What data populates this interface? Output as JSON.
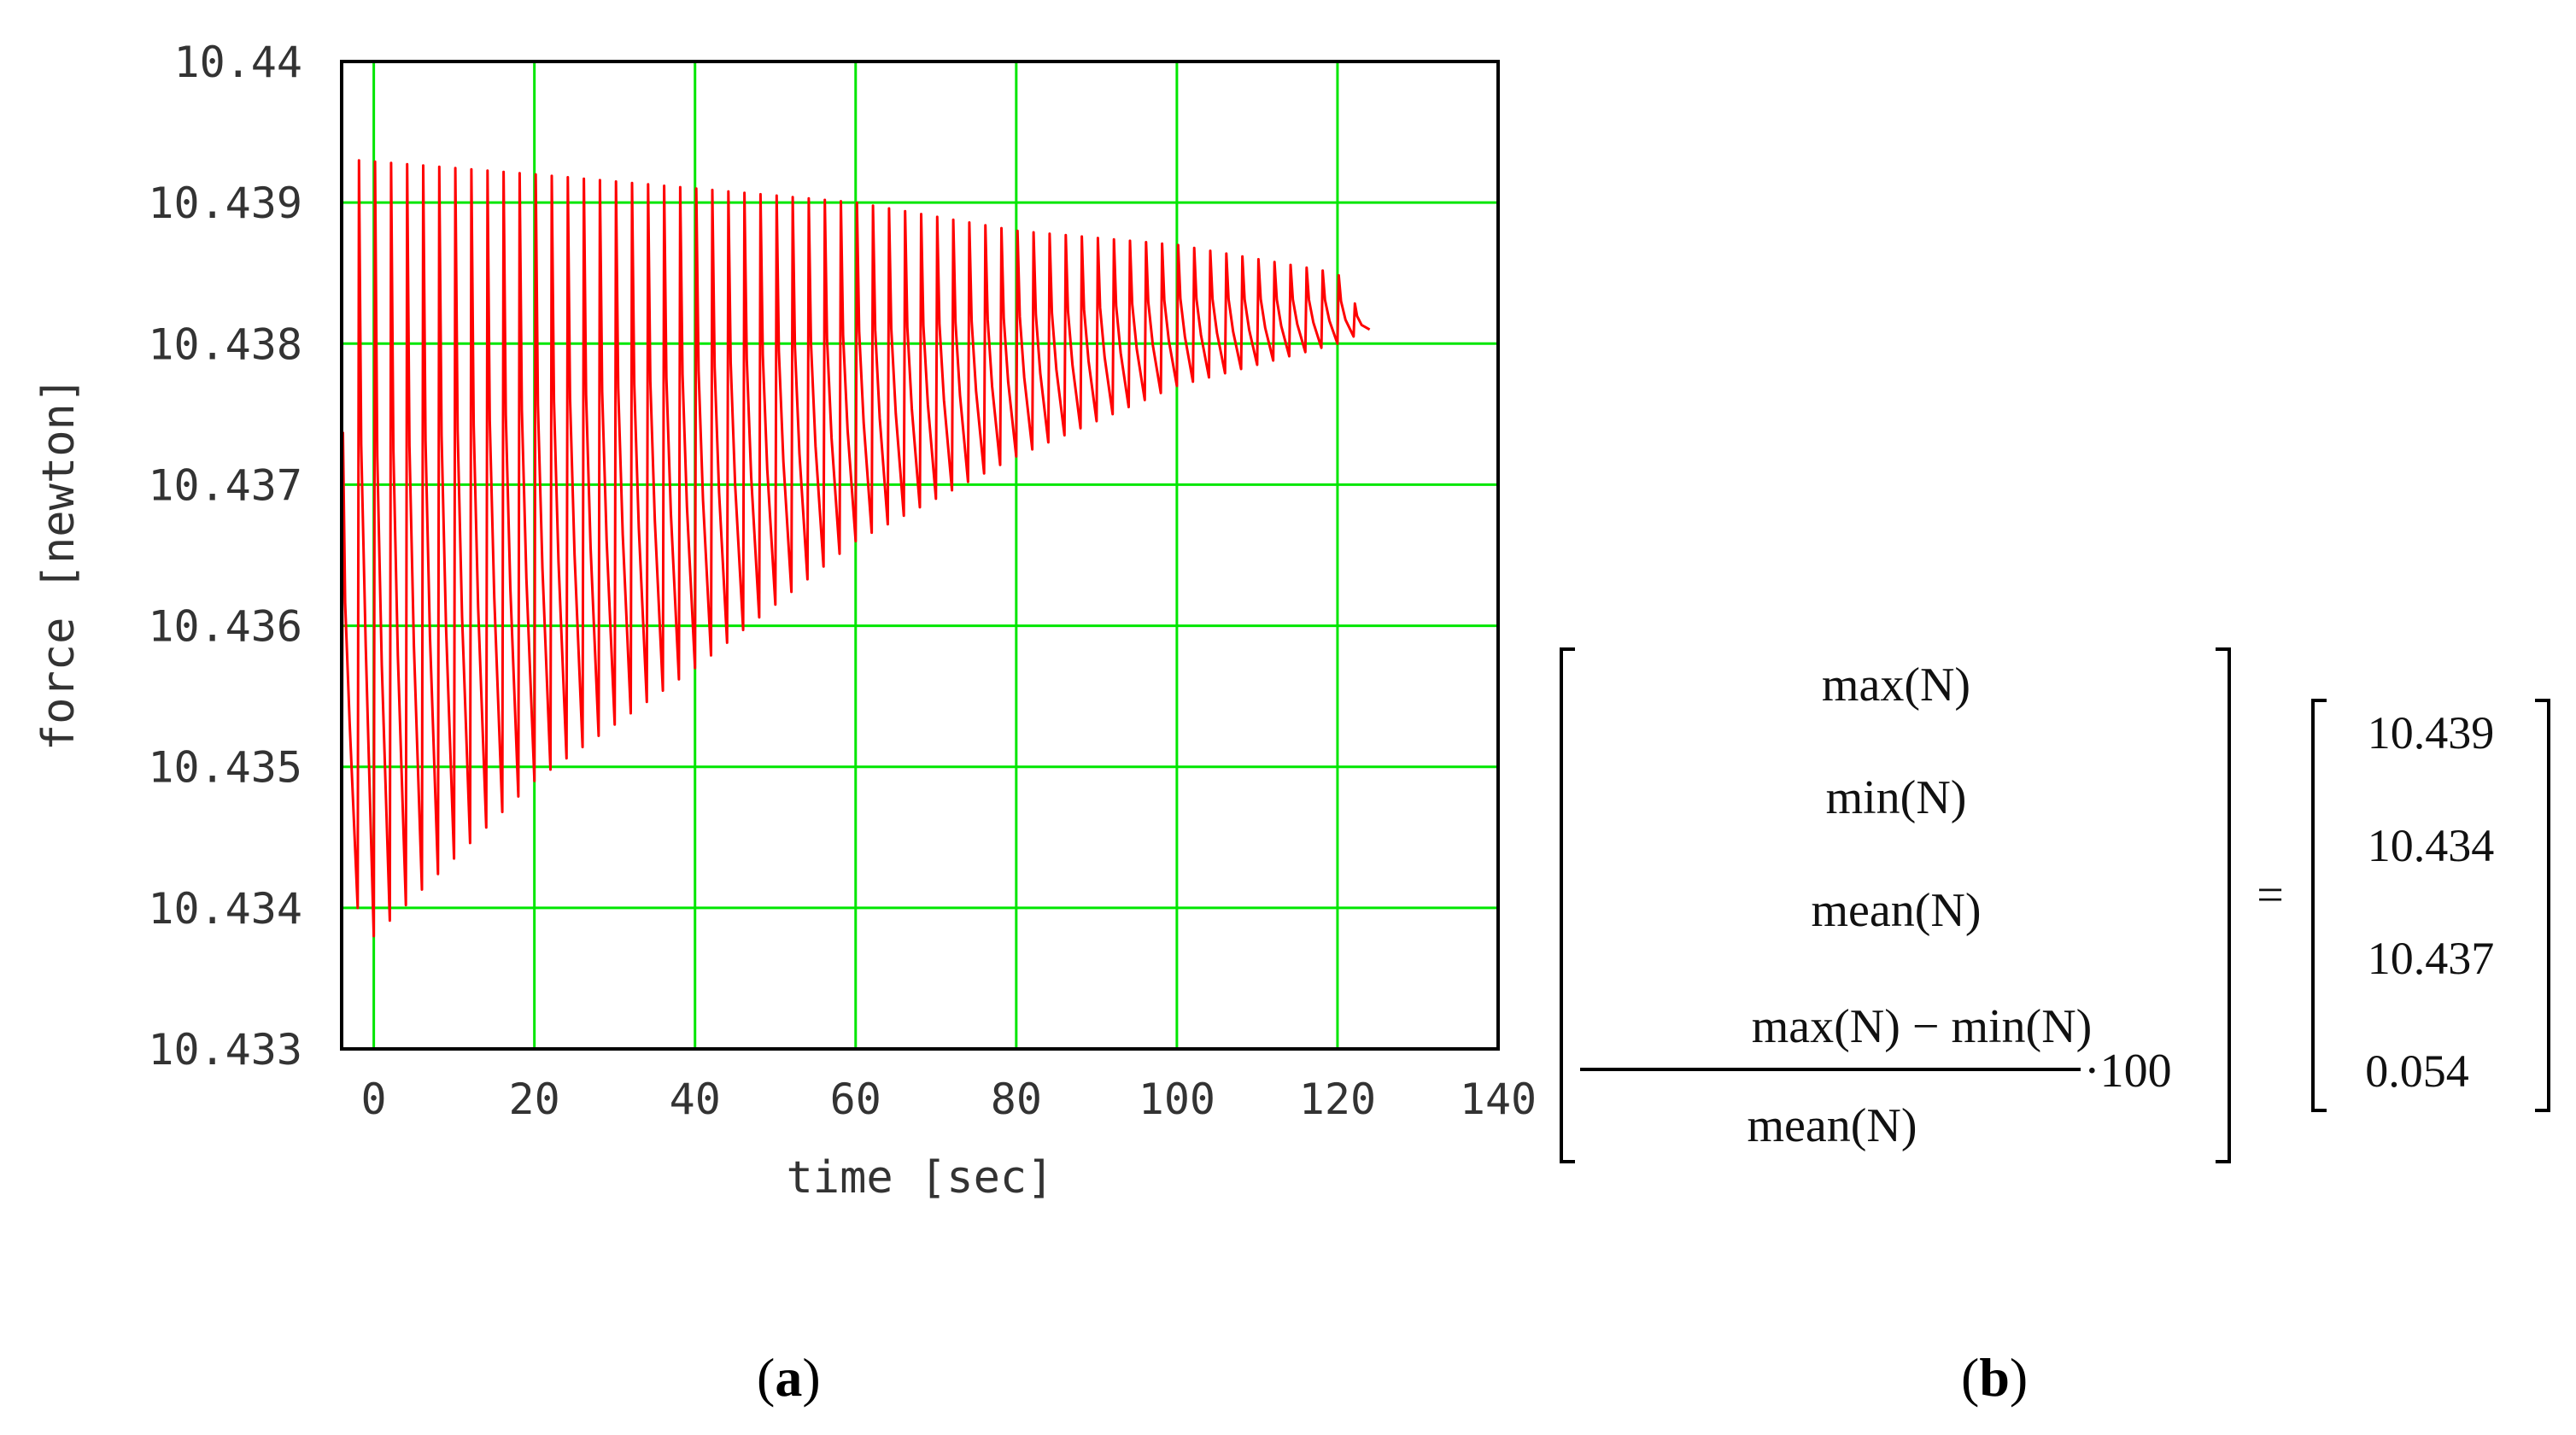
{
  "chart_data": {
    "type": "line",
    "title": "",
    "xlabel": "time [sec]",
    "ylabel": "force [newton]",
    "xlim": [
      -4,
      140
    ],
    "ylim": [
      10.433,
      10.44
    ],
    "x_ticks": [
      0,
      20,
      40,
      60,
      80,
      100,
      120,
      140
    ],
    "y_ticks": [
      10.433,
      10.434,
      10.435,
      10.436,
      10.437,
      10.438,
      10.439,
      10.44
    ],
    "x_tick_labels": [
      "0",
      "20",
      "40",
      "60",
      "80",
      "100",
      "120",
      "140"
    ],
    "y_tick_labels": [
      "10.433",
      "10.434",
      "10.435",
      "10.436",
      "10.437",
      "10.438",
      "10.439",
      "10.44"
    ],
    "grid": true,
    "colors": {
      "series": "#ff0000",
      "grid": "#00e600",
      "axis": "#000000"
    },
    "series": [
      {
        "name": "",
        "x_start": -4,
        "x_end": 124,
        "period_sec": 2,
        "upper_envelope": [
          {
            "x": -4,
            "y": 10.4372
          },
          {
            "x": -2,
            "y": 10.4393
          },
          {
            "x": 20,
            "y": 10.4392
          },
          {
            "x": 40,
            "y": 10.4391
          },
          {
            "x": 60,
            "y": 10.439
          },
          {
            "x": 80,
            "y": 10.4388
          },
          {
            "x": 100,
            "y": 10.4387
          },
          {
            "x": 120,
            "y": 10.4385
          },
          {
            "x": 124,
            "y": 10.4381
          }
        ],
        "lower_envelope": [
          {
            "x": -4,
            "y": 10.4342
          },
          {
            "x": 0,
            "y": 10.4338
          },
          {
            "x": 20,
            "y": 10.4349
          },
          {
            "x": 40,
            "y": 10.4357
          },
          {
            "x": 60,
            "y": 10.4366
          },
          {
            "x": 80,
            "y": 10.4372
          },
          {
            "x": 100,
            "y": 10.4377
          },
          {
            "x": 120,
            "y": 10.438
          },
          {
            "x": 124,
            "y": 10.4381
          }
        ]
      }
    ]
  },
  "panel_labels": {
    "a": "a",
    "b": "b"
  },
  "formula": {
    "rows": [
      "max(N)",
      "min(N)",
      "mean(N)"
    ],
    "fraction_numerator": "max(N) − min(N)",
    "fraction_denominator": "mean(N)",
    "fraction_suffix": "·100",
    "equals": "=",
    "results": [
      "10.439",
      "10.434",
      "10.437",
      "0.054"
    ]
  }
}
